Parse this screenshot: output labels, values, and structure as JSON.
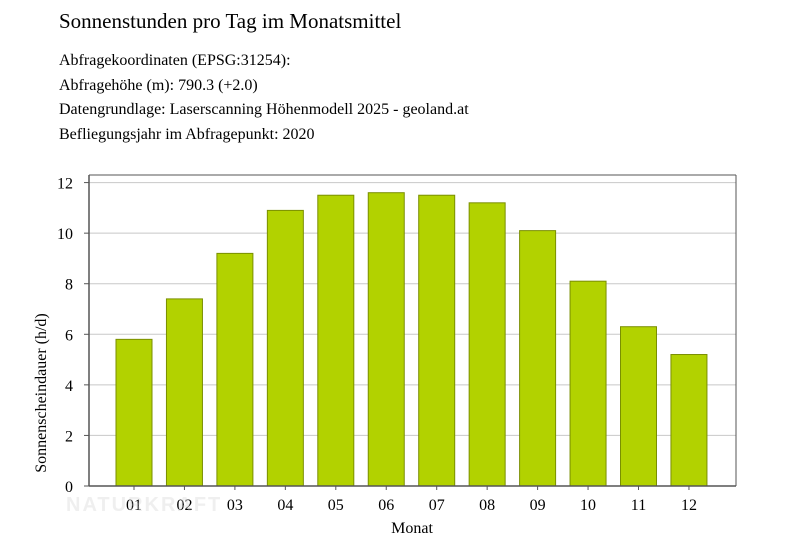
{
  "header": {
    "title": "Sonnenstunden pro Tag im Monatsmittel",
    "lines": [
      {
        "label": "Abfragekoordinaten (EPSG:31254):",
        "value": ""
      },
      {
        "label": "Abfragehöhe (m):",
        "value": "790.3 (+2.0)"
      },
      {
        "label": "Datengrundlage:",
        "value": "Laserscanning Höhenmodell 2025 - geoland.at"
      },
      {
        "label": "Befliegungsjahr im Abfragepunkt:",
        "value": "2020"
      }
    ]
  },
  "watermark": "NATURKRAFT",
  "chart_data": {
    "type": "bar",
    "title": "Sonnenstunden pro Tag im Monatsmittel",
    "xlabel": "Monat",
    "ylabel": "Sonnenscheindauer (h/d)",
    "categories": [
      "01",
      "02",
      "03",
      "04",
      "05",
      "06",
      "07",
      "08",
      "09",
      "10",
      "11",
      "12"
    ],
    "values": [
      5.8,
      7.4,
      9.2,
      10.9,
      11.5,
      11.6,
      11.5,
      11.2,
      10.1,
      8.1,
      6.3,
      5.2
    ],
    "ylim": [
      0,
      12.3
    ],
    "yticks": [
      0,
      2,
      4,
      6,
      8,
      10,
      12
    ],
    "grid": true,
    "legend": "none",
    "colors": {
      "bar": "#b2d200",
      "bar_stroke": "#7a8f00",
      "grid": "#c8c8c8",
      "axis": "#555555"
    }
  }
}
